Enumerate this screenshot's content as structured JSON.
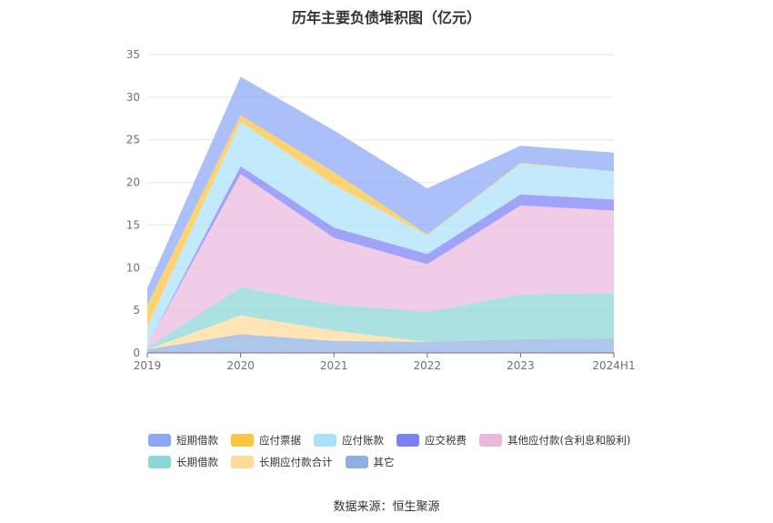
{
  "title": "历年主要负债堆积图（亿元）",
  "source": "数据来源：恒生聚源",
  "chart_data": {
    "type": "area",
    "stacked": true,
    "title": "历年主要负债堆积图（亿元）",
    "categories": [
      "2019",
      "2020",
      "2021",
      "2022",
      "2023",
      "2024H1"
    ],
    "ylim": [
      0,
      35
    ],
    "yticks": [
      0,
      5,
      10,
      15,
      20,
      25,
      30,
      35
    ],
    "grid": true,
    "legend_position": "bottom",
    "series": [
      {
        "name": "其它",
        "color": "#8fb0e0",
        "values": [
          0.4,
          2.2,
          1.4,
          1.3,
          1.6,
          1.7
        ]
      },
      {
        "name": "长期应付款合计",
        "color": "#ffd99a",
        "values": [
          0.0,
          2.2,
          1.2,
          0.0,
          0.0,
          0.0
        ]
      },
      {
        "name": "长期借款",
        "color": "#8ad7d6",
        "values": [
          0.2,
          3.3,
          3.1,
          3.5,
          5.3,
          5.3
        ]
      },
      {
        "name": "其他应付款(含利息和股利)",
        "color": "#ebb8dc",
        "values": [
          0.3,
          13.3,
          7.8,
          5.6,
          10.4,
          9.7
        ]
      },
      {
        "name": "应交税费",
        "color": "#7c80f5",
        "values": [
          0.0,
          0.9,
          1.2,
          1.2,
          1.3,
          1.3
        ]
      },
      {
        "name": "应付账款",
        "color": "#abe0fb",
        "values": [
          2.2,
          5.2,
          5.0,
          2.2,
          3.6,
          3.3
        ]
      },
      {
        "name": "应付票据",
        "color": "#fdc43d",
        "values": [
          2.5,
          0.8,
          1.5,
          0.1,
          0.1,
          0.0
        ]
      },
      {
        "name": "短期借款",
        "color": "#8ba7f7",
        "values": [
          2.0,
          4.5,
          4.9,
          5.4,
          2.0,
          2.2
        ]
      }
    ]
  },
  "legend": {
    "row1": [
      {
        "label": "短期借款",
        "color": "#8ba7f7"
      },
      {
        "label": "应付票据",
        "color": "#fdc43d"
      },
      {
        "label": "应付账款",
        "color": "#abe0fb"
      },
      {
        "label": "应交税费",
        "color": "#7c80f5"
      },
      {
        "label": "其他应付款(含利息和股利)",
        "color": "#ebb8dc"
      }
    ],
    "row2": [
      {
        "label": "长期借款",
        "color": "#8ad7d6"
      },
      {
        "label": "长期应付款合计",
        "color": "#ffd99a"
      },
      {
        "label": "其它",
        "color": "#8fb0e0"
      }
    ]
  }
}
